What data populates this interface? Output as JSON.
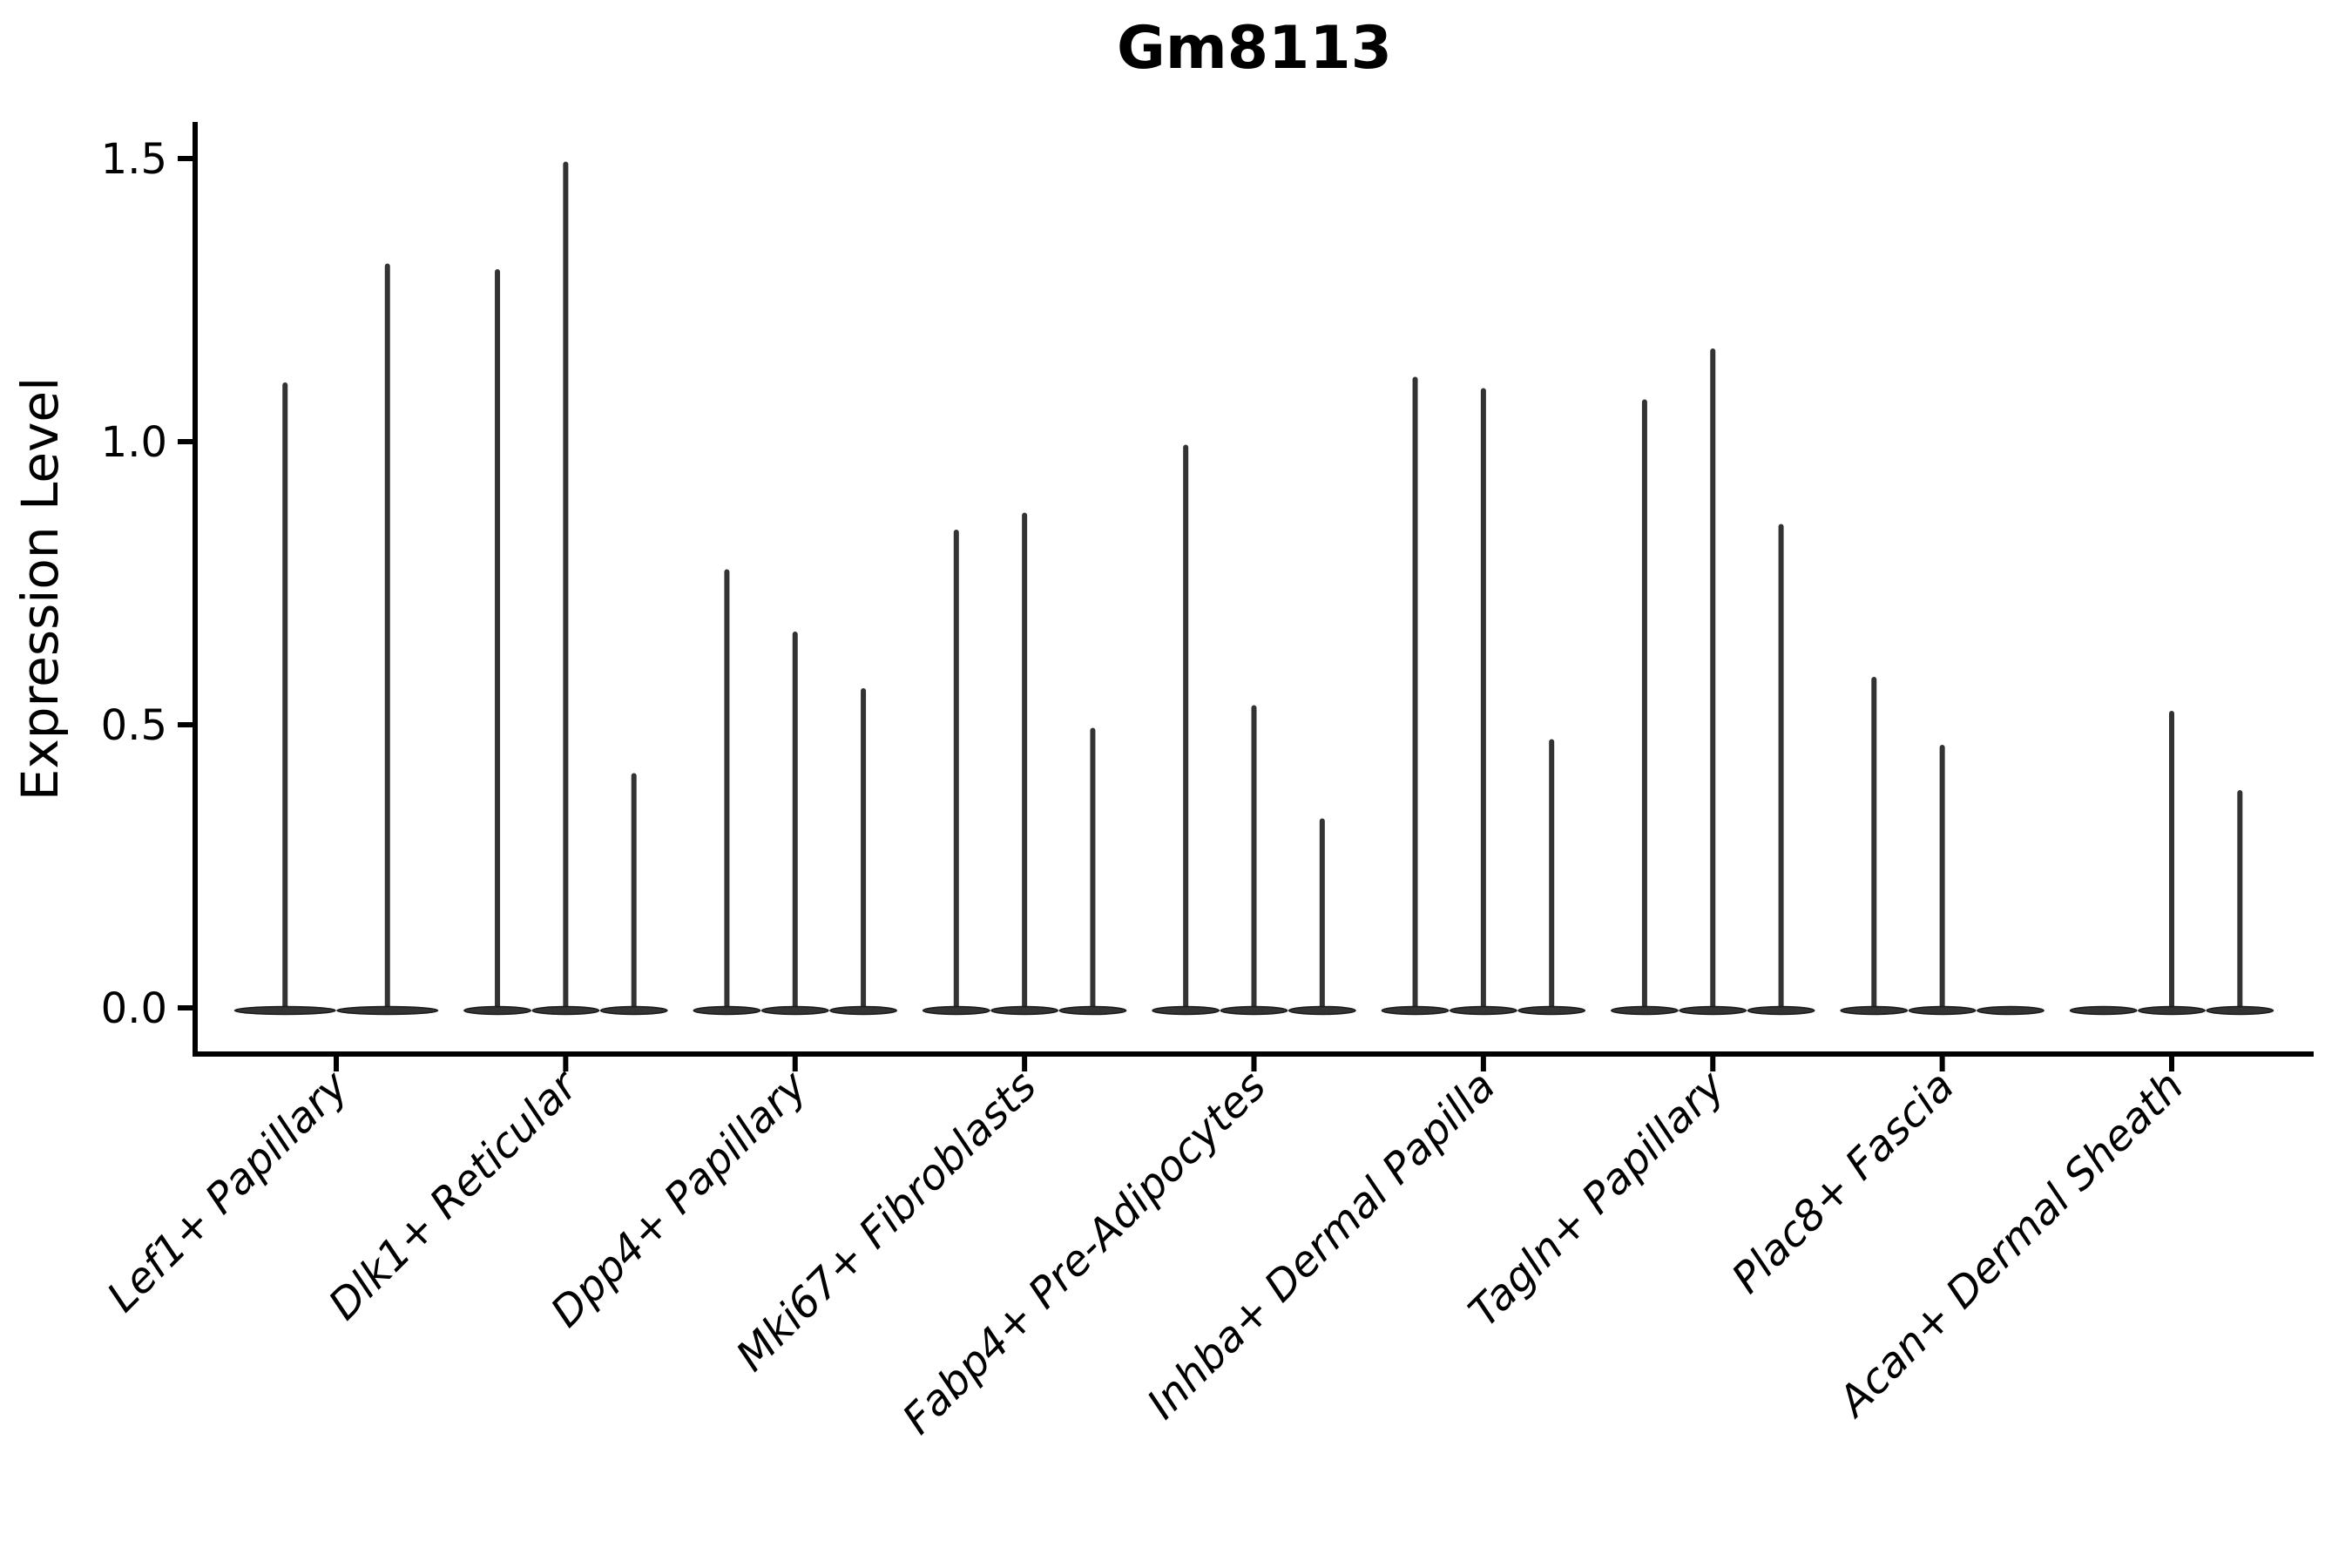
{
  "figure": {
    "title": "Gm8113",
    "ylabel": "Expression Level"
  },
  "colors": {
    "violin_fill": "#333333",
    "violin_edge": "#1a1a1a",
    "axis": "#000000",
    "text": "#000000",
    "background": "#ffffff"
  },
  "chart_data": {
    "type": "violin",
    "title": "Gm8113",
    "xlabel": "",
    "ylabel": "Expression Level",
    "ylim": [
      -0.08,
      1.56
    ],
    "yticks": [
      0.0,
      0.5,
      1.0,
      1.5
    ],
    "ytick_labels": [
      "0.0",
      "0.5",
      "1.0",
      "1.5"
    ],
    "grid": false,
    "legend_position": "none",
    "x_label_rotation_deg": 45,
    "description": "Single-cell expression violin plot; each category holds 2-3 narrow violins with most density at 0 (flat base) and a thin spike rising to the maximum expression value. A value of 0 means a flat violin with no spike.",
    "categories": [
      "Lef1+ Papillary",
      "Dlk1+ Reticular",
      "Dpp4+ Papillary",
      "Mki67+ Fibroblasts",
      "Fabp4+ Pre-Adipocytes",
      "Inhba+ Dermal Papilla",
      "Tagln+ Papillary",
      "Plac8+ Fascia",
      "Acan+ Dermal Sheath"
    ],
    "series": [
      {
        "category": "Lef1+ Papillary",
        "violin_max_values": [
          1.1,
          1.31
        ]
      },
      {
        "category": "Dlk1+ Reticular",
        "violin_max_values": [
          1.3,
          1.49,
          0.41
        ]
      },
      {
        "category": "Dpp4+ Papillary",
        "violin_max_values": [
          0.77,
          0.66,
          0.56
        ]
      },
      {
        "category": "Mki67+ Fibroblasts",
        "violin_max_values": [
          0.84,
          0.87,
          0.49
        ]
      },
      {
        "category": "Fabp4+ Pre-Adipocytes",
        "violin_max_values": [
          0.99,
          0.53,
          0.33
        ]
      },
      {
        "category": "Inhba+ Dermal Papilla",
        "violin_max_values": [
          1.11,
          1.09,
          0.47
        ]
      },
      {
        "category": "Tagln+ Papillary",
        "violin_max_values": [
          1.07,
          1.16,
          0.85
        ]
      },
      {
        "category": "Plac8+ Fascia",
        "violin_max_values": [
          0.58,
          0.46,
          0
        ]
      },
      {
        "category": "Acan+ Dermal Sheath",
        "violin_max_values": [
          0,
          0.52,
          0.38
        ]
      }
    ]
  }
}
